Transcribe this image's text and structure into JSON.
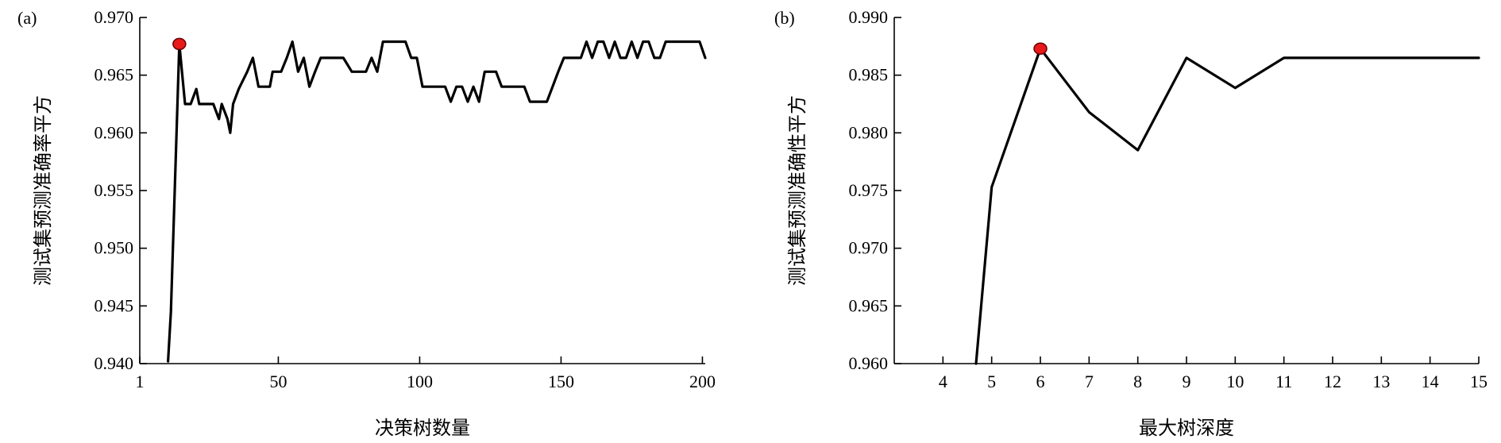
{
  "colors": {
    "line": "#000000",
    "marker": "#e8191b"
  },
  "chart_data": [
    {
      "type": "line",
      "panel_label": "(a)",
      "title": "",
      "xlabel": "决策树数量",
      "ylabel": "测试集预测准确率平方",
      "xlim": [
        1,
        201
      ],
      "ylim": [
        0.94,
        0.97
      ],
      "xticks": [
        1,
        50,
        100,
        150,
        200
      ],
      "xtick_labels": [
        "1",
        "50",
        "100",
        "150",
        "200"
      ],
      "yticks": [
        0.94,
        0.945,
        0.95,
        0.955,
        0.96,
        0.965,
        0.97
      ],
      "ytick_labels": [
        "0.940",
        "0.945",
        "0.950",
        "0.955",
        "0.960",
        "0.965",
        "0.970"
      ],
      "grid": false,
      "highlight": {
        "x": 15,
        "y": 0.9677
      },
      "series": [
        {
          "x": [
            11,
            12,
            14,
            15,
            17,
            19,
            21,
            22,
            25,
            27,
            29,
            30,
            32,
            33,
            34,
            36,
            39,
            41,
            43,
            45,
            47,
            48,
            49,
            51,
            53,
            55,
            57,
            59,
            61,
            63,
            65,
            67,
            70,
            73,
            76,
            79,
            81,
            83,
            85,
            87,
            89,
            91,
            95,
            97,
            99,
            101,
            103,
            107,
            109,
            111,
            113,
            115,
            117,
            119,
            121,
            123,
            125,
            127,
            129,
            131,
            133,
            135,
            137,
            139,
            141,
            143,
            145,
            147,
            149,
            151,
            153,
            155,
            157,
            159,
            161,
            163,
            165,
            167,
            169,
            171,
            173,
            175,
            177,
            179,
            181,
            183,
            185,
            187,
            189,
            195,
            197,
            199,
            201
          ],
          "values": [
            0.9402,
            0.9445,
            0.96,
            0.9677,
            0.9625,
            0.9625,
            0.9638,
            0.9625,
            0.9625,
            0.9625,
            0.9612,
            0.9625,
            0.9612,
            0.96,
            0.9625,
            0.9638,
            0.9653,
            0.9665,
            0.964,
            0.964,
            0.964,
            0.9653,
            0.9653,
            0.9653,
            0.9665,
            0.9679,
            0.9653,
            0.9665,
            0.964,
            0.9653,
            0.9665,
            0.9665,
            0.9665,
            0.9665,
            0.9653,
            0.9653,
            0.9653,
            0.9665,
            0.9653,
            0.9679,
            0.9679,
            0.9679,
            0.9679,
            0.9665,
            0.9665,
            0.964,
            0.964,
            0.964,
            0.964,
            0.9627,
            0.964,
            0.964,
            0.9627,
            0.964,
            0.9627,
            0.9653,
            0.9653,
            0.9653,
            0.964,
            0.964,
            0.964,
            0.964,
            0.964,
            0.9627,
            0.9627,
            0.9627,
            0.9627,
            0.964,
            0.9653,
            0.9665,
            0.9665,
            0.9665,
            0.9665,
            0.9679,
            0.9665,
            0.9679,
            0.9679,
            0.9665,
            0.9679,
            0.9665,
            0.9665,
            0.9679,
            0.9665,
            0.9679,
            0.9679,
            0.9665,
            0.9665,
            0.9679,
            0.9679,
            0.9679,
            0.9679,
            0.9679,
            0.9665
          ]
        }
      ]
    },
    {
      "type": "line",
      "panel_label": "(b)",
      "title": "",
      "xlabel": "最大树深度",
      "ylabel": "测试集预测准确性平方",
      "xlim": [
        3,
        15
      ],
      "ylim": [
        0.96,
        0.99
      ],
      "xticks": [
        4,
        5,
        6,
        7,
        8,
        9,
        10,
        11,
        12,
        13,
        14,
        15
      ],
      "xtick_labels": [
        "4",
        "5",
        "6",
        "7",
        "8",
        "9",
        "10",
        "11",
        "12",
        "13",
        "14",
        "15"
      ],
      "yticks": [
        0.96,
        0.965,
        0.97,
        0.975,
        0.98,
        0.985,
        0.99
      ],
      "ytick_labels": [
        "0.960",
        "0.965",
        "0.970",
        "0.975",
        "0.980",
        "0.985",
        "0.990"
      ],
      "grid": false,
      "highlight": {
        "x": 6,
        "y": 0.9873
      },
      "series": [
        {
          "x": [
            4.68,
            5,
            6,
            7,
            8,
            9,
            10,
            11,
            12,
            13,
            14,
            15
          ],
          "values": [
            0.96,
            0.9753,
            0.9873,
            0.9818,
            0.9785,
            0.9865,
            0.9839,
            0.9865,
            0.9865,
            0.9865,
            0.9865,
            0.9865
          ]
        }
      ]
    }
  ]
}
